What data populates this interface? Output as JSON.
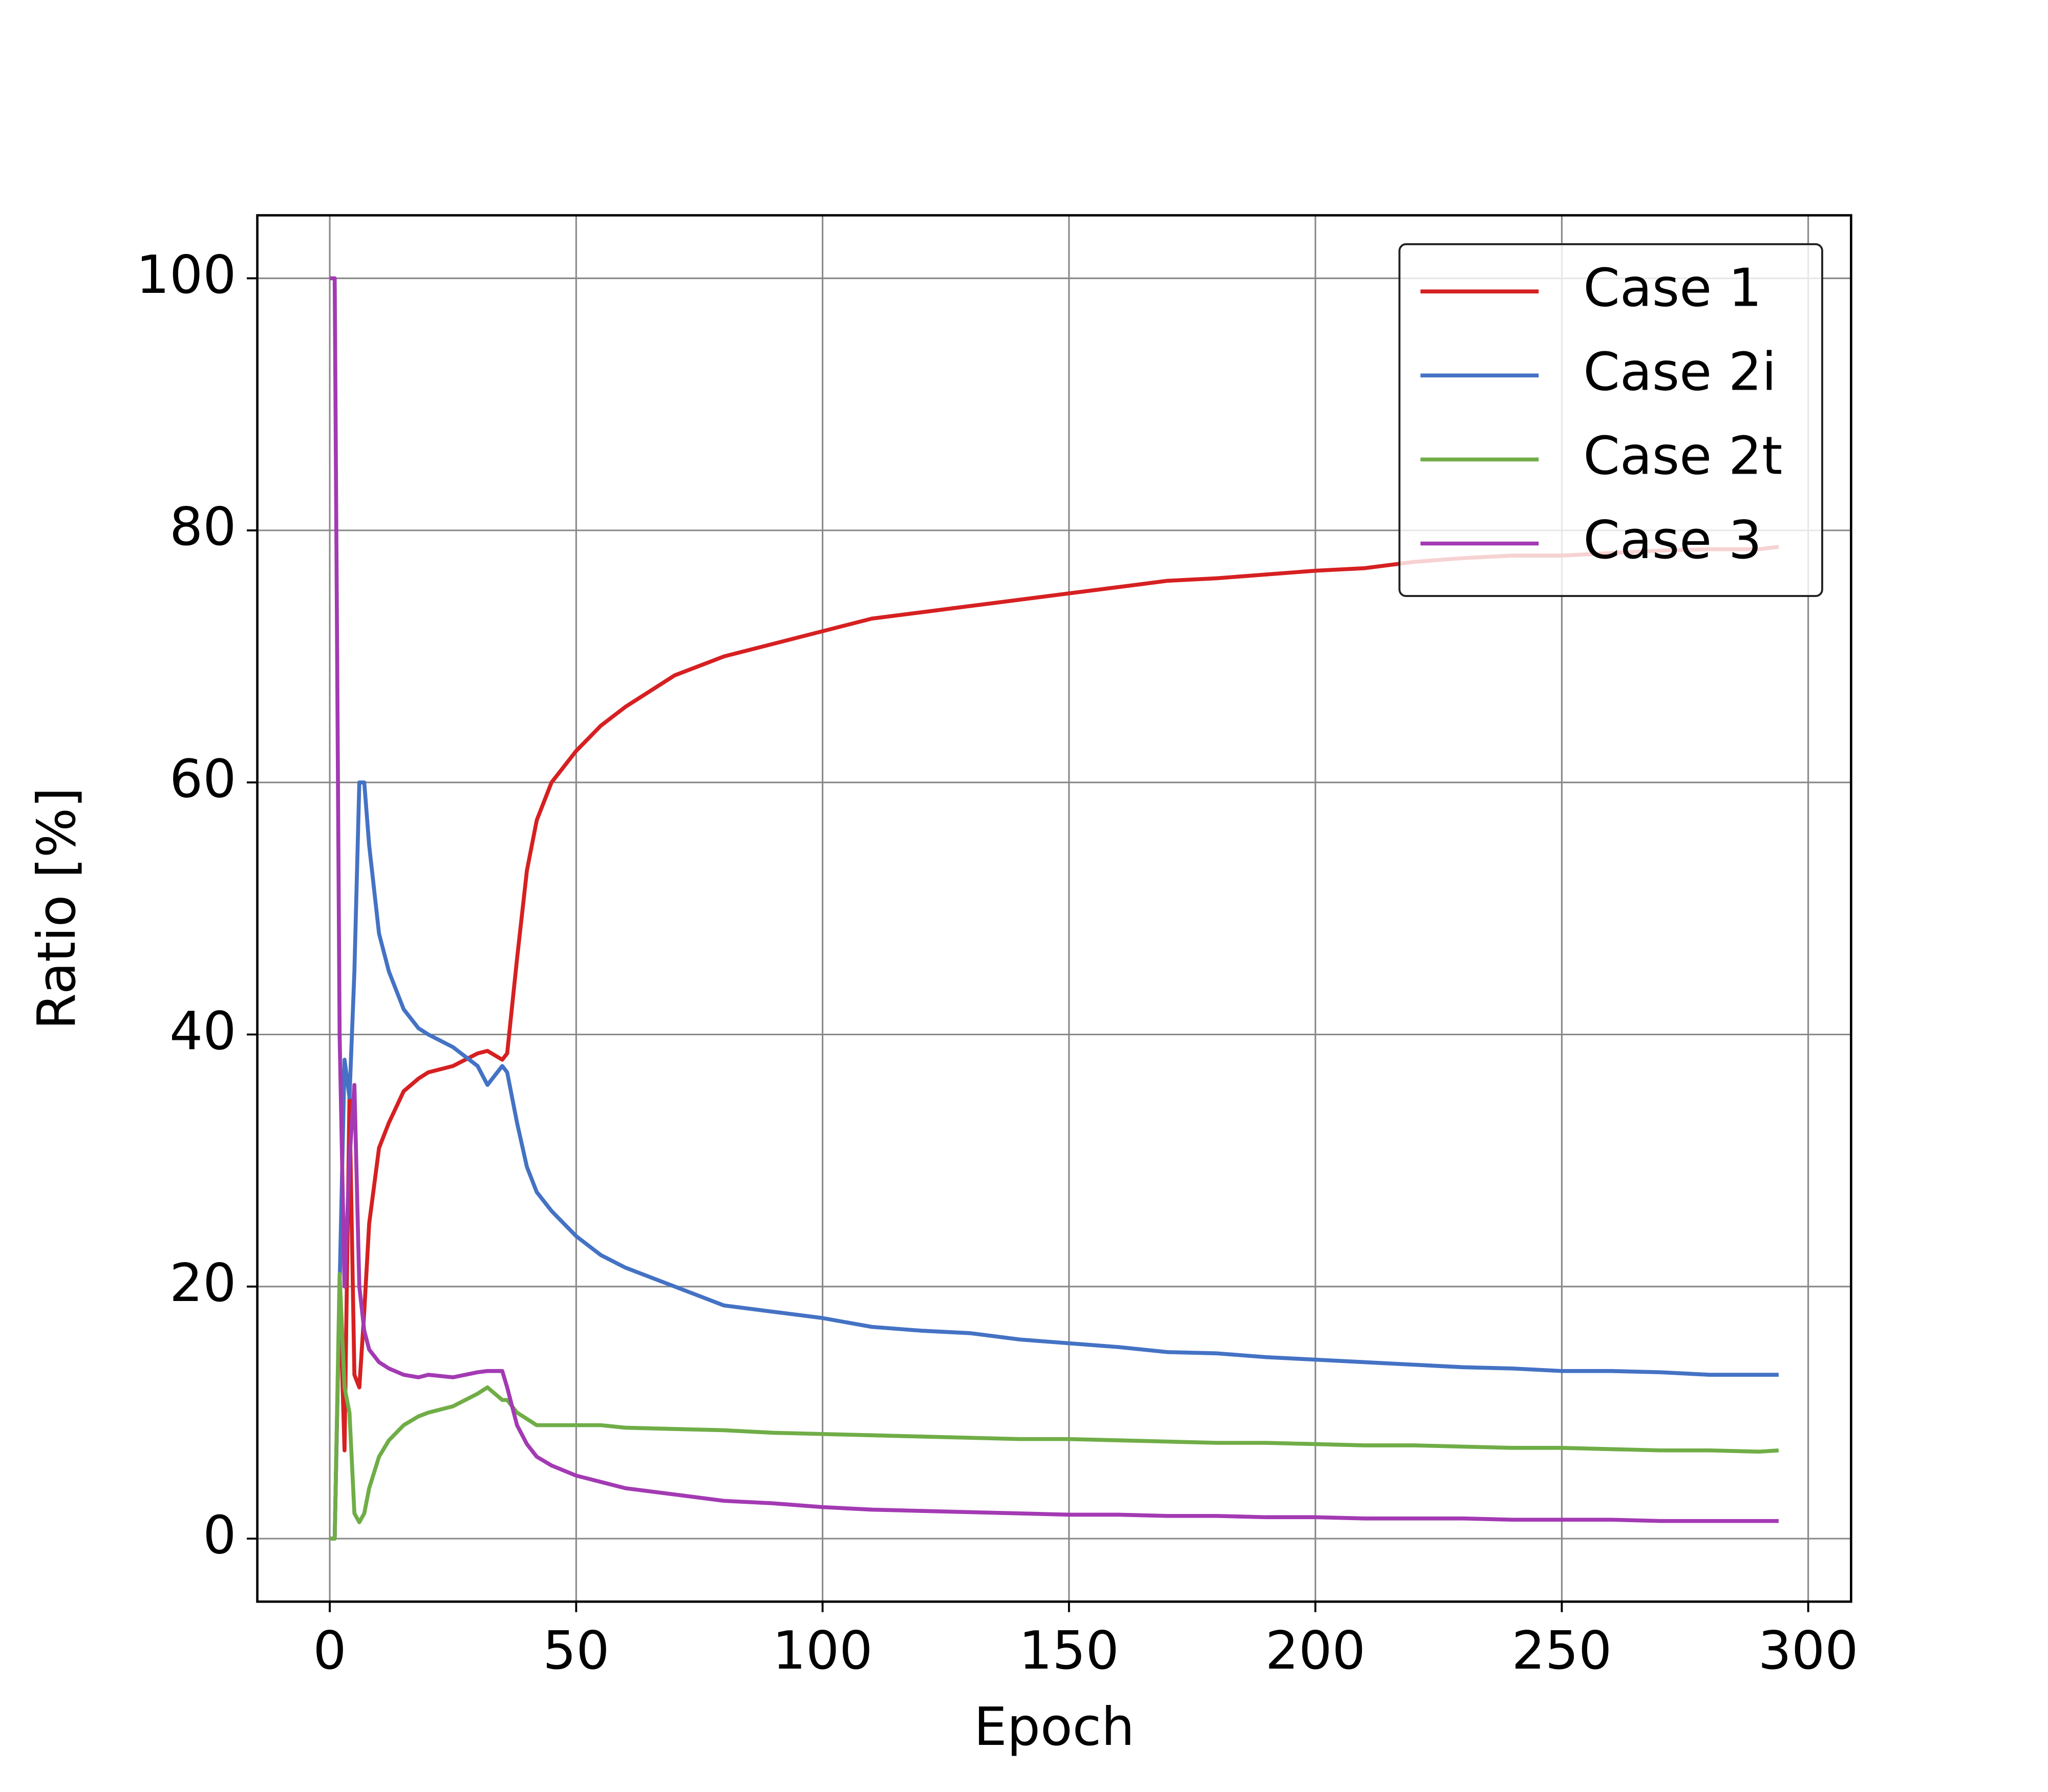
{
  "chart_data": {
    "type": "line",
    "xlabel": "Epoch",
    "ylabel": "Ratio [%]",
    "x": [
      0,
      1,
      2,
      3,
      4,
      5,
      6,
      7,
      8,
      10,
      12,
      15,
      18,
      20,
      25,
      30,
      32,
      35,
      36,
      38,
      40,
      42,
      45,
      50,
      55,
      60,
      70,
      80,
      90,
      100,
      110,
      120,
      130,
      140,
      150,
      160,
      170,
      180,
      190,
      200,
      210,
      220,
      230,
      240,
      250,
      260,
      270,
      280,
      290,
      294
    ],
    "series": [
      {
        "name": "Case 1",
        "color": "#d62021",
        "values": [
          0,
          0,
          20,
          7,
          35,
          13,
          12,
          18,
          25,
          31,
          33,
          35.5,
          36.5,
          37,
          37.5,
          38.5,
          38.7,
          38,
          38.5,
          46,
          53,
          57,
          60,
          62.5,
          64.5,
          66,
          68.5,
          70,
          71,
          72,
          73,
          73.5,
          74,
          74.5,
          75,
          75.5,
          76,
          76.2,
          76.5,
          76.8,
          77,
          77.5,
          77.8,
          78,
          78,
          78.2,
          78.4,
          78.5,
          78.5,
          78.7
        ]
      },
      {
        "name": "Case 2i",
        "color": "#4472c4",
        "values": [
          0,
          0,
          20,
          38,
          35,
          45,
          60,
          60,
          55,
          48,
          45,
          42,
          40.5,
          40,
          39,
          37.5,
          36,
          37.5,
          37,
          33,
          29.5,
          27.5,
          26,
          24,
          22.5,
          21.5,
          20,
          18.5,
          18,
          17.5,
          16.8,
          16.5,
          16.3,
          15.8,
          15.5,
          15.2,
          14.8,
          14.7,
          14.4,
          14.2,
          14,
          13.8,
          13.6,
          13.5,
          13.3,
          13.3,
          13.2,
          13,
          13,
          13
        ]
      },
      {
        "name": "Case 2t",
        "color": "#70ad47",
        "values": [
          0,
          0,
          21,
          12,
          10,
          2,
          1.3,
          2,
          4,
          6.5,
          7.8,
          9,
          9.7,
          10,
          10.5,
          11.5,
          12,
          11,
          11,
          10,
          9.5,
          9,
          9,
          9,
          9,
          8.8,
          8.7,
          8.6,
          8.4,
          8.3,
          8.2,
          8.1,
          8,
          7.9,
          7.9,
          7.8,
          7.7,
          7.6,
          7.6,
          7.5,
          7.4,
          7.4,
          7.3,
          7.2,
          7.2,
          7.1,
          7,
          7,
          6.9,
          7
        ]
      },
      {
        "name": "Case 3",
        "color": "#a33ab3",
        "values": [
          100,
          100,
          40,
          20,
          30,
          36,
          20,
          16.5,
          15,
          14,
          13.5,
          13,
          12.8,
          13,
          12.8,
          13.2,
          13.3,
          13.3,
          12,
          9,
          7.5,
          6.5,
          5.8,
          5,
          4.5,
          4,
          3.5,
          3,
          2.8,
          2.5,
          2.3,
          2.2,
          2.1,
          2,
          1.9,
          1.9,
          1.8,
          1.8,
          1.7,
          1.7,
          1.6,
          1.6,
          1.6,
          1.5,
          1.5,
          1.5,
          1.4,
          1.4,
          1.4,
          1.4
        ]
      }
    ],
    "xlim": [
      -14.7,
      308.7
    ],
    "ylim": [
      -5,
      105
    ],
    "xticks": [
      0,
      50,
      100,
      150,
      200,
      250,
      300
    ],
    "yticks": [
      0,
      20,
      40,
      60,
      80,
      100
    ],
    "grid": true,
    "legend": "upper right"
  }
}
